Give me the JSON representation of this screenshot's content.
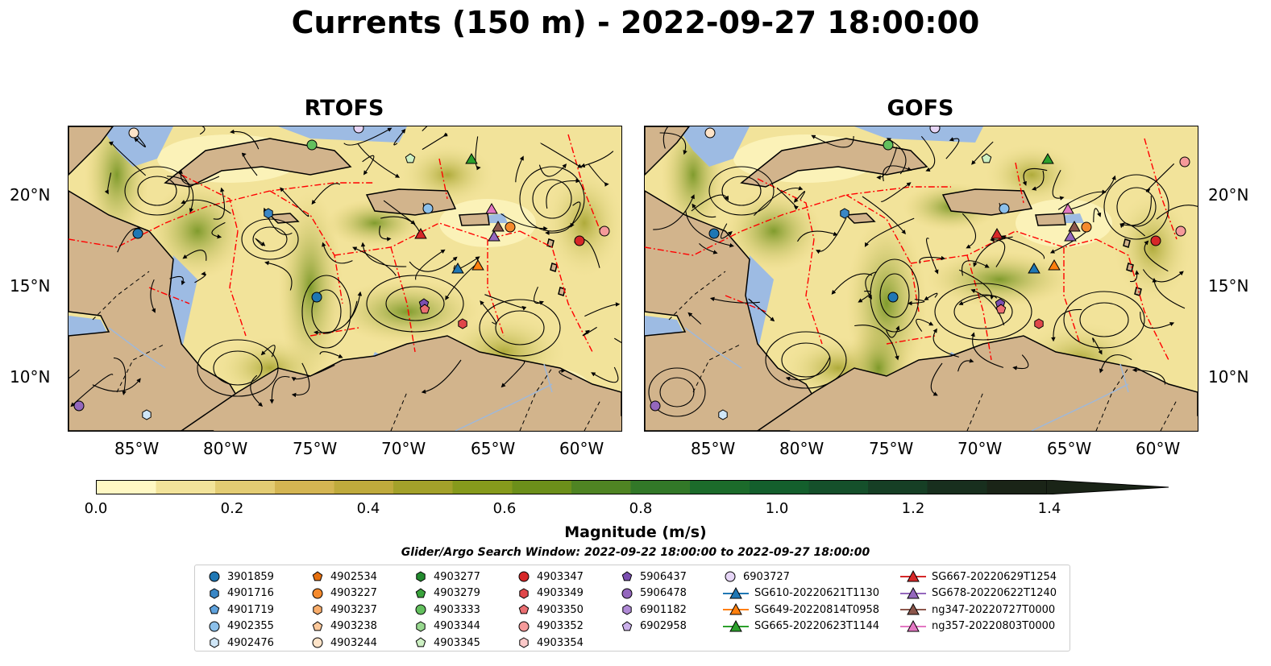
{
  "title": "Currents (150 m) - 2022-09-27 18:00:00",
  "panels": [
    {
      "title": "RTOFS"
    },
    {
      "title": "GOFS"
    }
  ],
  "x_ticks": [
    "85°W",
    "80°W",
    "75°W",
    "70°W",
    "65°W",
    "60°W"
  ],
  "y_ticks": [
    "20°N",
    "15°N",
    "10°N"
  ],
  "colorbar": {
    "label": "Magnitude (m/s)",
    "ticks": [
      "0.0",
      "0.2",
      "0.4",
      "0.6",
      "0.8",
      "1.0",
      "1.2",
      "1.4"
    ],
    "colors": [
      "#fff8c4",
      "#f2e39a",
      "#e3cc73",
      "#d4b552",
      "#bfaa3c",
      "#a3a12a",
      "#869a1c",
      "#6c8f1a",
      "#4f8423",
      "#327828",
      "#1c6b2b",
      "#145f2d",
      "#15502b",
      "#163f25",
      "#182f1e",
      "#1a2417"
    ],
    "extend": "max"
  },
  "search_window": "Glider/Argo Search Window: 2022-09-22 18:00:00 to 2022-09-27 18:00:00",
  "colors": {
    "land": "#d2b48c",
    "water_shallow": "#9dbbe3",
    "eez": "#ff0000"
  },
  "legend": [
    {
      "label": "3901859",
      "marker": "circle",
      "color": "#1f77b4"
    },
    {
      "label": "4901716",
      "marker": "hexagon",
      "color": "#3a87c6"
    },
    {
      "label": "4901719",
      "marker": "pentagon",
      "color": "#5fa2dd"
    },
    {
      "label": "4902355",
      "marker": "circle",
      "color": "#8cc0ea"
    },
    {
      "label": "4902476",
      "marker": "hexagon",
      "color": "#cfe6f7"
    },
    {
      "label": "4902534",
      "marker": "pentagon",
      "color": "#e6700f"
    },
    {
      "label": "4903227",
      "marker": "circle",
      "color": "#f58a2d"
    },
    {
      "label": "4903237",
      "marker": "hexagon",
      "color": "#f9ad6b"
    },
    {
      "label": "4903238",
      "marker": "pentagon",
      "color": "#fbc89b"
    },
    {
      "label": "4903244",
      "marker": "circle",
      "color": "#fde3c8"
    },
    {
      "label": "4903277",
      "marker": "hexagon",
      "color": "#238b2f"
    },
    {
      "label": "4903279",
      "marker": "pentagon",
      "color": "#3aa33c"
    },
    {
      "label": "4903333",
      "marker": "circle",
      "color": "#63c05e"
    },
    {
      "label": "4903344",
      "marker": "hexagon",
      "color": "#98d88f"
    },
    {
      "label": "4903345",
      "marker": "pentagon",
      "color": "#cdf0c3"
    },
    {
      "label": "4903347",
      "marker": "circle",
      "color": "#d62728"
    },
    {
      "label": "4903349",
      "marker": "hexagon",
      "color": "#e0474a"
    },
    {
      "label": "4903350",
      "marker": "pentagon",
      "color": "#eb6f72"
    },
    {
      "label": "4903352",
      "marker": "circle",
      "color": "#f59a9a"
    },
    {
      "label": "4903354",
      "marker": "hexagon",
      "color": "#fcc9c9"
    },
    {
      "label": "5906437",
      "marker": "pentagon",
      "color": "#7b4fb0"
    },
    {
      "label": "5906478",
      "marker": "circle",
      "color": "#9467bd"
    },
    {
      "label": "6901182",
      "marker": "hexagon",
      "color": "#b08ad6"
    },
    {
      "label": "6902958",
      "marker": "pentagon",
      "color": "#cbb0ea"
    },
    {
      "label": "6903727",
      "marker": "circle",
      "color": "#e6d5f6"
    },
    {
      "label": "SG610-20220621T1130",
      "marker": "triangle-line",
      "color": "#1f77b4"
    },
    {
      "label": "SG649-20220814T0958",
      "marker": "triangle-line",
      "color": "#ff7f0e"
    },
    {
      "label": "SG665-20220623T1144",
      "marker": "triangle-line",
      "color": "#2ca02c"
    },
    {
      "label": "SG667-20220629T1254",
      "marker": "triangle-line",
      "color": "#d62728"
    },
    {
      "label": "SG678-20220622T1240",
      "marker": "triangle-line",
      "color": "#9467bd"
    },
    {
      "label": "ng347-20220727T0000",
      "marker": "triangle-line",
      "color": "#8c564b"
    },
    {
      "label": "ng357-20220803T0000",
      "marker": "triangle-line",
      "color": "#e377c2"
    }
  ]
}
